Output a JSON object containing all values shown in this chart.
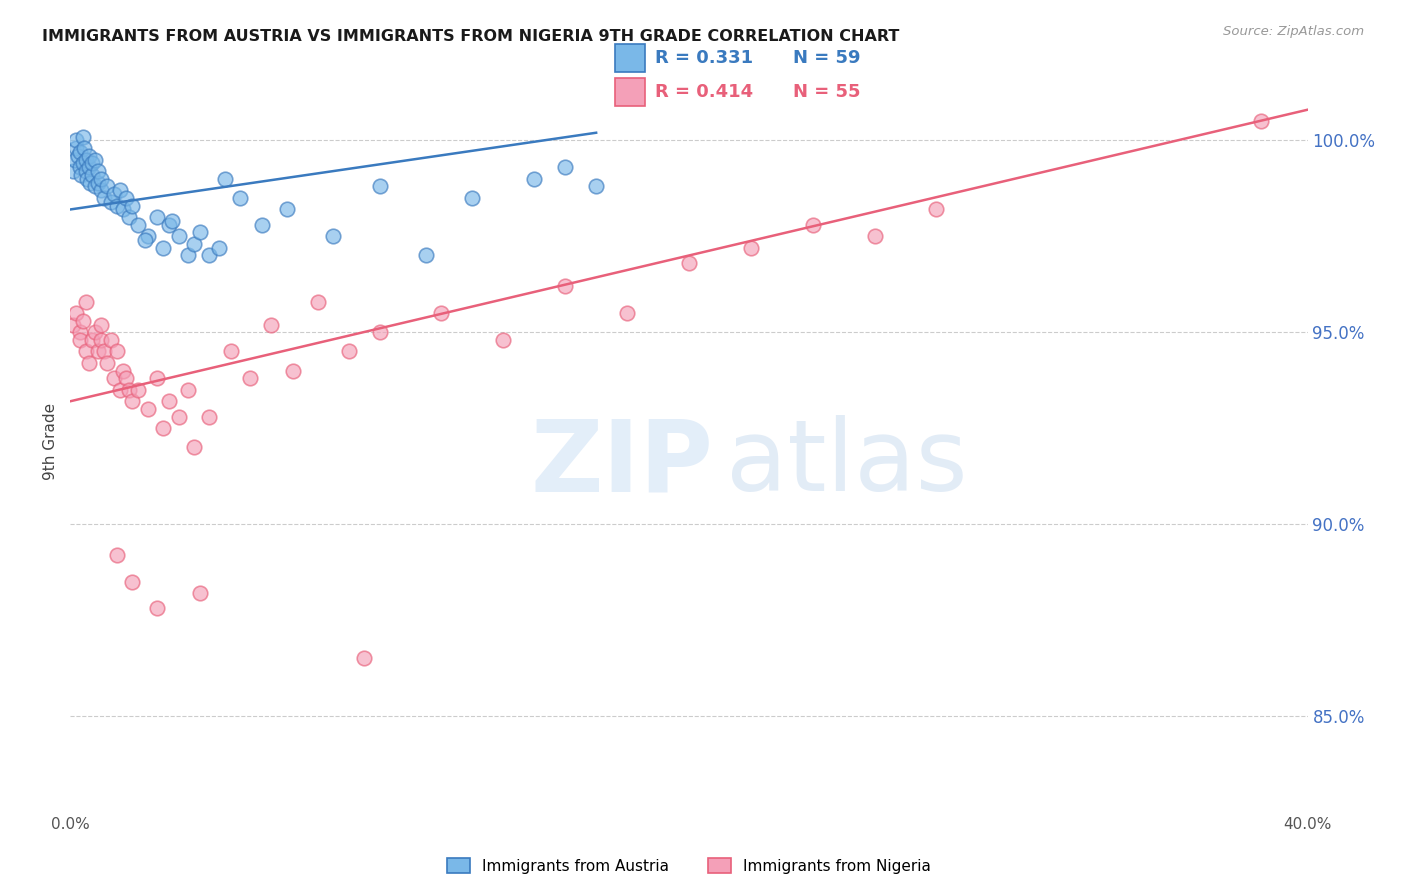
{
  "title": "IMMIGRANTS FROM AUSTRIA VS IMMIGRANTS FROM NIGERIA 9TH GRADE CORRELATION CHART",
  "source_text": "Source: ZipAtlas.com",
  "ylabel": "9th Grade",
  "y_ticks": [
    85.0,
    90.0,
    95.0,
    100.0
  ],
  "y_tick_labels": [
    "85.0%",
    "90.0%",
    "95.0%",
    "100.0%"
  ],
  "xmin": 0.0,
  "xmax": 40.0,
  "ymin": 82.5,
  "ymax": 101.8,
  "legend_r1": "0.331",
  "legend_n1": "59",
  "legend_r2": "0.414",
  "legend_n2": "55",
  "legend_label1": "Immigrants from Austria",
  "legend_label2": "Immigrants from Nigeria",
  "color_austria": "#7ab8e8",
  "color_nigeria": "#f4a0b8",
  "trendline_color_austria": "#3a7abf",
  "trendline_color_nigeria": "#e8607a",
  "aus_trend_x0": 0.0,
  "aus_trend_y0": 98.2,
  "aus_trend_x1": 17.0,
  "aus_trend_y1": 100.2,
  "nig_trend_x0": 0.0,
  "nig_trend_y0": 93.2,
  "nig_trend_x1": 40.0,
  "nig_trend_y1": 100.8
}
